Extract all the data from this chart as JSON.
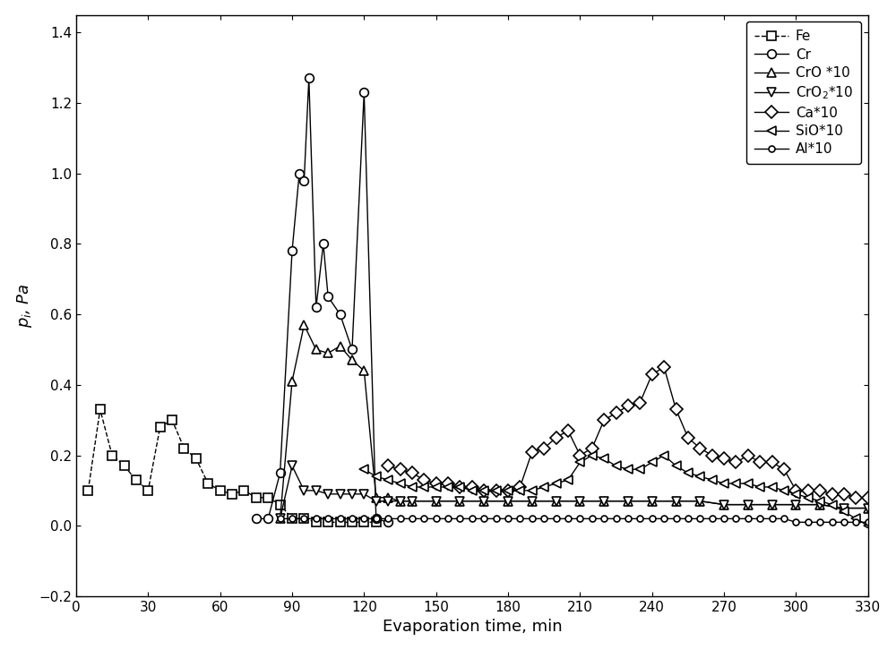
{
  "Fe": {
    "x": [
      5,
      10,
      15,
      20,
      25,
      30,
      35,
      40,
      45,
      50,
      55,
      60,
      65,
      70,
      75,
      80,
      85,
      90,
      95,
      100,
      105,
      110,
      115,
      120,
      125
    ],
    "y": [
      0.1,
      0.33,
      0.2,
      0.17,
      0.13,
      0.1,
      0.28,
      0.3,
      0.22,
      0.19,
      0.12,
      0.1,
      0.09,
      0.1,
      0.08,
      0.08,
      0.06,
      0.02,
      0.02,
      0.01,
      0.01,
      0.01,
      0.01,
      0.01,
      0.01
    ]
  },
  "Cr": {
    "x": [
      75,
      80,
      85,
      90,
      93,
      95,
      97,
      100,
      103,
      105,
      110,
      115,
      120,
      125,
      130
    ],
    "y": [
      0.02,
      0.02,
      0.15,
      0.78,
      1.0,
      0.98,
      1.27,
      0.62,
      0.8,
      0.65,
      0.6,
      0.5,
      1.23,
      0.02,
      0.01
    ]
  },
  "CrO": {
    "x": [
      85,
      90,
      95,
      100,
      105,
      110,
      115,
      120,
      125,
      130,
      135,
      140,
      150,
      160,
      170,
      180,
      190,
      200,
      210,
      220,
      230,
      240,
      250,
      260,
      270,
      280,
      290,
      300,
      310,
      320,
      330
    ],
    "y": [
      0.02,
      0.41,
      0.57,
      0.5,
      0.49,
      0.51,
      0.47,
      0.44,
      0.08,
      0.08,
      0.07,
      0.07,
      0.07,
      0.07,
      0.07,
      0.07,
      0.07,
      0.07,
      0.07,
      0.07,
      0.07,
      0.07,
      0.07,
      0.07,
      0.06,
      0.06,
      0.06,
      0.06,
      0.06,
      0.05,
      0.05
    ]
  },
  "CrO2": {
    "x": [
      85,
      90,
      95,
      100,
      105,
      110,
      115,
      120,
      125,
      130,
      135,
      140,
      150,
      160,
      170,
      180,
      190,
      200,
      210,
      220,
      230,
      240,
      250,
      260,
      270,
      280,
      290,
      300,
      310,
      320,
      330
    ],
    "y": [
      0.02,
      0.17,
      0.1,
      0.1,
      0.09,
      0.09,
      0.09,
      0.09,
      0.07,
      0.07,
      0.07,
      0.07,
      0.07,
      0.07,
      0.07,
      0.07,
      0.07,
      0.07,
      0.07,
      0.07,
      0.07,
      0.07,
      0.07,
      0.07,
      0.06,
      0.06,
      0.06,
      0.06,
      0.06,
      0.05,
      0.05
    ]
  },
  "Ca": {
    "x": [
      130,
      135,
      140,
      145,
      150,
      155,
      160,
      165,
      170,
      175,
      180,
      185,
      190,
      195,
      200,
      205,
      210,
      215,
      220,
      225,
      230,
      235,
      240,
      245,
      250,
      255,
      260,
      265,
      270,
      275,
      280,
      285,
      290,
      295,
      300,
      305,
      310,
      315,
      320,
      325,
      330
    ],
    "y": [
      0.17,
      0.16,
      0.15,
      0.13,
      0.12,
      0.12,
      0.11,
      0.11,
      0.1,
      0.1,
      0.1,
      0.11,
      0.21,
      0.22,
      0.25,
      0.27,
      0.2,
      0.22,
      0.3,
      0.32,
      0.34,
      0.35,
      0.43,
      0.45,
      0.33,
      0.25,
      0.22,
      0.2,
      0.19,
      0.18,
      0.2,
      0.18,
      0.18,
      0.16,
      0.1,
      0.1,
      0.1,
      0.09,
      0.09,
      0.08,
      0.08
    ]
  },
  "SiO": {
    "x": [
      120,
      125,
      130,
      135,
      140,
      145,
      150,
      155,
      160,
      165,
      170,
      175,
      180,
      185,
      190,
      195,
      200,
      205,
      210,
      215,
      220,
      225,
      230,
      235,
      240,
      245,
      250,
      255,
      260,
      265,
      270,
      275,
      280,
      285,
      290,
      295,
      300,
      305,
      310,
      315,
      320,
      325,
      330
    ],
    "y": [
      0.16,
      0.14,
      0.13,
      0.12,
      0.11,
      0.11,
      0.11,
      0.11,
      0.11,
      0.1,
      0.1,
      0.1,
      0.1,
      0.1,
      0.1,
      0.11,
      0.12,
      0.13,
      0.18,
      0.2,
      0.19,
      0.17,
      0.16,
      0.16,
      0.18,
      0.2,
      0.17,
      0.15,
      0.14,
      0.13,
      0.12,
      0.12,
      0.12,
      0.11,
      0.11,
      0.1,
      0.09,
      0.08,
      0.07,
      0.06,
      0.04,
      0.02,
      0.0
    ]
  },
  "Al": {
    "x": [
      85,
      90,
      95,
      100,
      105,
      110,
      115,
      120,
      125,
      130,
      135,
      140,
      145,
      150,
      155,
      160,
      165,
      170,
      175,
      180,
      185,
      190,
      195,
      200,
      205,
      210,
      215,
      220,
      225,
      230,
      235,
      240,
      245,
      250,
      255,
      260,
      265,
      270,
      275,
      280,
      285,
      290,
      295,
      300,
      305,
      310,
      315,
      320,
      325,
      330
    ],
    "y": [
      0.02,
      0.02,
      0.02,
      0.02,
      0.02,
      0.02,
      0.02,
      0.02,
      0.02,
      0.02,
      0.02,
      0.02,
      0.02,
      0.02,
      0.02,
      0.02,
      0.02,
      0.02,
      0.02,
      0.02,
      0.02,
      0.02,
      0.02,
      0.02,
      0.02,
      0.02,
      0.02,
      0.02,
      0.02,
      0.02,
      0.02,
      0.02,
      0.02,
      0.02,
      0.02,
      0.02,
      0.02,
      0.02,
      0.02,
      0.02,
      0.02,
      0.02,
      0.02,
      0.01,
      0.01,
      0.01,
      0.01,
      0.01,
      0.01,
      0.01
    ]
  },
  "xlim": [
    0,
    330
  ],
  "ylim": [
    -0.2,
    1.45
  ],
  "xticks": [
    0,
    30,
    60,
    90,
    120,
    150,
    180,
    210,
    240,
    270,
    300,
    330
  ],
  "yticks": [
    -0.2,
    0.0,
    0.2,
    0.4,
    0.6,
    0.8,
    1.0,
    1.2,
    1.4
  ],
  "xlabel": "Evaporation time, min",
  "ylabel": "$p_{i}$, Pa",
  "color": "#000000",
  "linewidth": 1.0,
  "markersize": 7
}
